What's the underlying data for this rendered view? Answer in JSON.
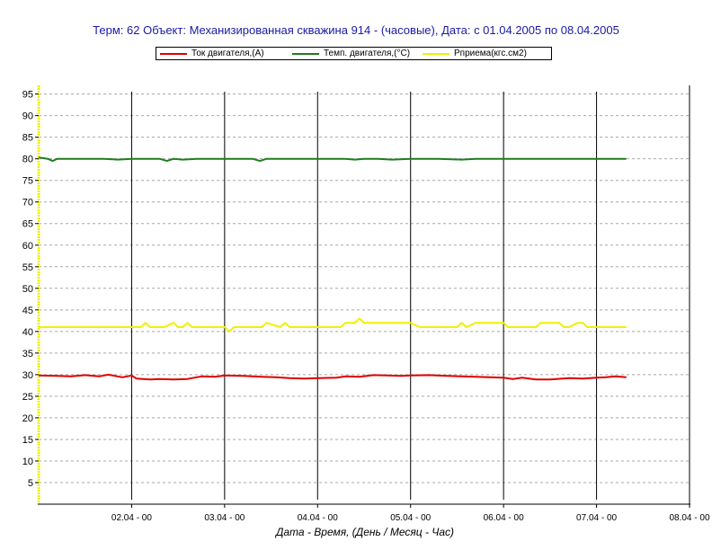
{
  "chart_data": {
    "type": "line",
    "title": "Терм: 62  Объект: Механизированная скважина 914 - (часовые), Дата: с 01.04.2005 по 08.04.2005",
    "xlabel": "Дата - Время, (День / Месяц - Час)",
    "ylabel": "",
    "x_range": [
      1.0,
      8.0
    ],
    "x_ticks": [
      2,
      3,
      4,
      5,
      6,
      7,
      8
    ],
    "x_tick_labels": [
      "02.04 - 00",
      "03.04 - 00",
      "04.04 - 00",
      "05.04 - 00",
      "06.04 - 00",
      "07.04 - 00",
      "08.04 - 00"
    ],
    "ylim": [
      0,
      97
    ],
    "y_ticks": [
      5,
      10,
      15,
      20,
      25,
      30,
      35,
      40,
      45,
      50,
      55,
      60,
      65,
      70,
      75,
      80,
      85,
      90,
      95
    ],
    "grid": true,
    "legend_position": "top",
    "series": [
      {
        "name": "Ток двигателя,(А)",
        "color": "#e00000",
        "x": [
          1.0,
          1.2,
          1.35,
          1.5,
          1.65,
          1.75,
          1.9,
          2.0,
          2.05,
          2.2,
          2.3,
          2.45,
          2.6,
          2.75,
          2.9,
          3.0,
          3.2,
          3.4,
          3.55,
          3.7,
          3.85,
          4.0,
          4.2,
          4.3,
          4.45,
          4.6,
          4.75,
          4.9,
          5.0,
          5.2,
          5.4,
          5.55,
          5.7,
          5.85,
          6.0,
          6.1,
          6.2,
          6.35,
          6.5,
          6.7,
          6.85,
          7.0,
          7.1,
          7.2,
          7.32
        ],
        "values": [
          29.8,
          29.7,
          29.6,
          29.9,
          29.6,
          30.0,
          29.4,
          29.8,
          29.1,
          28.9,
          29.0,
          28.9,
          29.0,
          29.6,
          29.5,
          29.8,
          29.7,
          29.5,
          29.4,
          29.2,
          29.1,
          29.2,
          29.3,
          29.6,
          29.5,
          29.9,
          29.8,
          29.7,
          29.8,
          29.9,
          29.7,
          29.6,
          29.5,
          29.4,
          29.3,
          29.0,
          29.3,
          28.9,
          28.9,
          29.2,
          29.1,
          29.3,
          29.4,
          29.6,
          29.4
        ]
      },
      {
        "name": "Темп. двигателя,(°С)",
        "color": "#1e7d1e",
        "x": [
          1.0,
          1.1,
          1.15,
          1.2,
          1.3,
          1.5,
          1.7,
          1.85,
          2.0,
          2.2,
          2.3,
          2.38,
          2.45,
          2.55,
          2.7,
          2.9,
          3.0,
          3.3,
          3.38,
          3.45,
          3.6,
          3.8,
          4.0,
          4.2,
          4.3,
          4.4,
          4.5,
          4.65,
          4.8,
          5.0,
          5.3,
          5.55,
          5.7,
          5.9,
          6.0,
          6.2,
          6.4,
          6.6,
          6.8,
          7.0,
          7.2,
          7.32
        ],
        "values": [
          80.3,
          80.0,
          79.5,
          80.0,
          80.0,
          80.0,
          80.0,
          79.8,
          80.0,
          80.0,
          80.0,
          79.5,
          80.0,
          79.8,
          80.0,
          80.0,
          80.0,
          80.0,
          79.5,
          80.0,
          80.0,
          80.0,
          80.0,
          80.0,
          80.0,
          79.8,
          80.0,
          80.0,
          79.8,
          80.0,
          80.0,
          79.8,
          80.0,
          80.0,
          80.0,
          80.0,
          80.0,
          80.0,
          80.0,
          80.0,
          80.0,
          80.0
        ]
      },
      {
        "name": "Рприема(кгс.см2)",
        "color": "#f0f000",
        "x": [
          1.0,
          2.0,
          2.1,
          2.15,
          2.2,
          2.35,
          2.45,
          2.5,
          2.55,
          2.6,
          2.65,
          2.7,
          2.8,
          3.0,
          3.05,
          3.1,
          3.3,
          3.4,
          3.45,
          3.6,
          3.65,
          3.7,
          3.8,
          4.0,
          4.25,
          4.3,
          4.4,
          4.45,
          4.5,
          5.0,
          5.1,
          5.5,
          5.55,
          5.6,
          5.7,
          6.0,
          6.05,
          6.1,
          6.35,
          6.4,
          6.5,
          6.6,
          6.65,
          6.7,
          6.8,
          6.85,
          6.9,
          7.0,
          7.1,
          7.32
        ],
        "values": [
          41.0,
          41.0,
          41.0,
          42.0,
          41.0,
          41.0,
          42.0,
          41.0,
          41.0,
          42.0,
          41.0,
          41.0,
          41.0,
          41.0,
          40.0,
          41.0,
          41.0,
          41.0,
          42.0,
          41.0,
          42.0,
          41.0,
          41.0,
          41.0,
          41.0,
          42.0,
          42.0,
          43.0,
          42.0,
          42.0,
          41.0,
          41.0,
          42.0,
          41.0,
          42.0,
          42.0,
          41.0,
          41.0,
          41.0,
          42.0,
          42.0,
          42.0,
          41.0,
          41.0,
          42.0,
          42.0,
          41.0,
          41.0,
          41.0,
          41.0
        ]
      }
    ]
  }
}
